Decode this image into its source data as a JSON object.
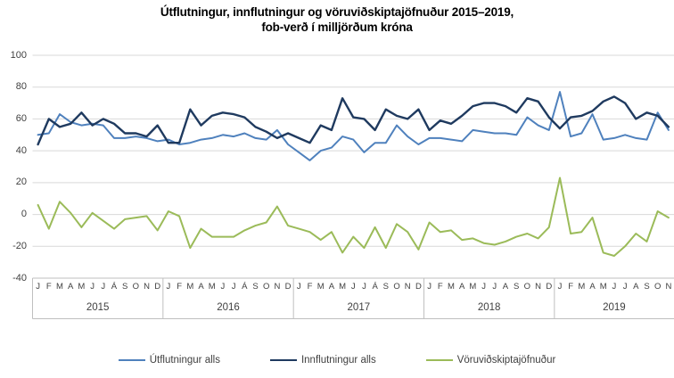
{
  "chart_data": {
    "type": "line",
    "title_line1": "Útflutningur, innflutningur og vöruviðskiptajöfnuður 2015–2019,",
    "title_line2": "fob-verð í milljörðum króna",
    "unit": "milljarðar króna (fob-verð)",
    "ylim": [
      -40,
      100
    ],
    "ytick_step": 20,
    "yticks": [
      100,
      80,
      60,
      40,
      20,
      0,
      -20,
      -40
    ],
    "grid": true,
    "legend_position": "bottom",
    "x_years": [
      {
        "year": "2015",
        "months": [
          "J",
          "F",
          "M",
          "A",
          "M",
          "J",
          "J",
          "Á",
          "S",
          "O",
          "N",
          "D"
        ]
      },
      {
        "year": "2016",
        "months": [
          "J",
          "F",
          "M",
          "A",
          "M",
          "J",
          "J",
          "Á",
          "S",
          "O",
          "N",
          "D"
        ]
      },
      {
        "year": "2017",
        "months": [
          "J",
          "F",
          "M",
          "A",
          "M",
          "J",
          "J",
          "Á",
          "S",
          "O",
          "N",
          "D"
        ]
      },
      {
        "year": "2018",
        "months": [
          "J",
          "F",
          "M",
          "A",
          "M",
          "J",
          "J",
          "A",
          "S",
          "O",
          "N",
          "D"
        ]
      },
      {
        "year": "2019",
        "months": [
          "J",
          "F",
          "M",
          "A",
          "M",
          "J",
          "J",
          "A",
          "S",
          "O",
          "N"
        ]
      }
    ],
    "series": [
      {
        "name": "Útflutningur alls",
        "color": "#4F81BD",
        "values": [
          50,
          51,
          63,
          58,
          56,
          57,
          56,
          48,
          48,
          49,
          48,
          46,
          47,
          44,
          45,
          47,
          48,
          50,
          49,
          51,
          48,
          47,
          53,
          44,
          39,
          34,
          40,
          42,
          49,
          47,
          39,
          45,
          45,
          56,
          49,
          44,
          48,
          48,
          47,
          46,
          53,
          52,
          51,
          51,
          50,
          61,
          56,
          53,
          77,
          49,
          51,
          63,
          47,
          48,
          50,
          48,
          47,
          64,
          53
        ]
      },
      {
        "name": "Innflutningur alls",
        "color": "#1F3A5F",
        "values": [
          44,
          60,
          55,
          57,
          64,
          56,
          60,
          57,
          51,
          51,
          49,
          56,
          45,
          45,
          66,
          56,
          62,
          64,
          63,
          61,
          55,
          52,
          48,
          51,
          48,
          45,
          56,
          53,
          73,
          61,
          60,
          53,
          66,
          62,
          60,
          66,
          53,
          59,
          57,
          62,
          68,
          70,
          70,
          68,
          64,
          73,
          71,
          61,
          54,
          61,
          62,
          65,
          71,
          74,
          70,
          60,
          64,
          62,
          55
        ]
      },
      {
        "name": "Vöruviðskiptajöfnuður",
        "color": "#9BBB59",
        "values": [
          6,
          -9,
          8,
          1,
          -8,
          1,
          -4,
          -9,
          -3,
          -2,
          -1,
          -10,
          2,
          -1,
          -21,
          -9,
          -14,
          -14,
          -14,
          -10,
          -7,
          -5,
          5,
          -7,
          -9,
          -11,
          -16,
          -11,
          -24,
          -14,
          -21,
          -8,
          -21,
          -6,
          -11,
          -22,
          -5,
          -11,
          -10,
          -16,
          -15,
          -18,
          -19,
          -17,
          -14,
          -12,
          -15,
          -8,
          23,
          -12,
          -11,
          -2,
          -24,
          -26,
          -20,
          -12,
          -17,
          2,
          -2
        ]
      }
    ],
    "colors": {
      "gridline": "#D9D9D9",
      "axis_box": "#BFBFBF",
      "tick_text": "#404040",
      "title_text": "#000000",
      "background": "#FFFFFF"
    }
  }
}
